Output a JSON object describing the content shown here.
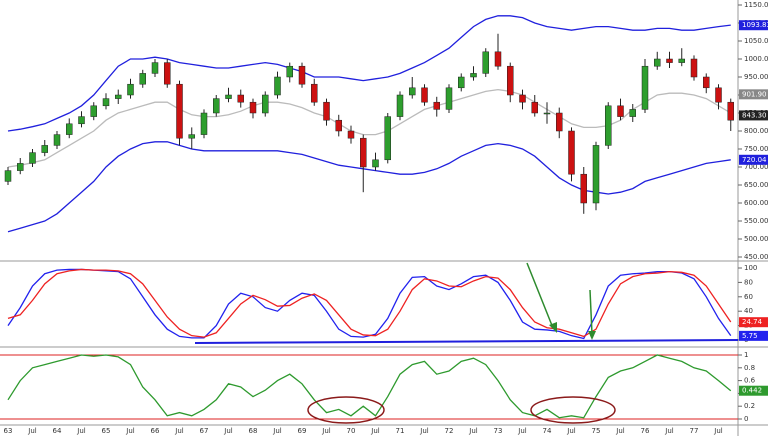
{
  "chart_data": [
    {
      "type": "candlestick",
      "open": [
        660,
        690,
        710,
        740,
        760,
        790,
        820,
        840,
        870,
        890,
        900,
        930,
        960,
        990,
        930,
        780,
        790,
        850,
        890,
        900,
        880,
        850,
        900,
        950,
        980,
        930,
        880,
        830,
        800,
        780,
        700,
        720,
        840,
        900,
        920,
        880,
        860,
        920,
        950,
        960,
        1020,
        980,
        900,
        880,
        850,
        850,
        800,
        680,
        600,
        760,
        870,
        840,
        860,
        980,
        1000,
        990,
        1000,
        950,
        920,
        880
      ],
      "high": [
        700,
        725,
        750,
        775,
        800,
        835,
        855,
        880,
        905,
        915,
        945,
        970,
        1000,
        1000,
        940,
        810,
        860,
        900,
        920,
        915,
        890,
        910,
        965,
        990,
        990,
        945,
        890,
        845,
        815,
        790,
        740,
        850,
        910,
        950,
        930,
        895,
        930,
        960,
        980,
        1030,
        1070,
        990,
        915,
        900,
        880,
        865,
        810,
        700,
        770,
        880,
        890,
        875,
        1000,
        1020,
        1020,
        1030,
        1010,
        960,
        930,
        890
      ],
      "low": [
        650,
        680,
        700,
        730,
        750,
        780,
        810,
        830,
        860,
        875,
        890,
        920,
        950,
        920,
        760,
        750,
        780,
        840,
        880,
        865,
        835,
        840,
        890,
        935,
        920,
        870,
        815,
        785,
        765,
        630,
        690,
        710,
        830,
        890,
        870,
        840,
        850,
        910,
        940,
        950,
        970,
        880,
        860,
        840,
        820,
        780,
        660,
        570,
        580,
        750,
        830,
        825,
        850,
        970,
        975,
        980,
        940,
        905,
        860,
        800
      ],
      "close": [
        690,
        710,
        740,
        760,
        790,
        820,
        840,
        870,
        890,
        900,
        930,
        960,
        990,
        930,
        780,
        790,
        850,
        890,
        900,
        880,
        850,
        900,
        950,
        980,
        930,
        880,
        830,
        800,
        780,
        700,
        720,
        840,
        900,
        920,
        880,
        860,
        920,
        950,
        960,
        1020,
        980,
        900,
        880,
        850,
        850,
        800,
        680,
        600,
        760,
        870,
        840,
        860,
        980,
        1000,
        990,
        1000,
        950,
        920,
        880,
        830
      ],
      "up_color": "#2e9e2e",
      "down_color": "#cc1111",
      "series": [
        {
          "color": "#2020dd",
          "values": [
            800,
            805,
            812,
            820,
            835,
            850,
            870,
            900,
            940,
            980,
            1000,
            1000,
            1005,
            1000,
            990,
            985,
            980,
            975,
            975,
            980,
            985,
            990,
            985,
            975,
            965,
            950,
            950,
            950,
            945,
            940,
            945,
            950,
            960,
            975,
            990,
            1010,
            1030,
            1060,
            1090,
            1110,
            1120,
            1120,
            1115,
            1100,
            1090,
            1085,
            1080,
            1085,
            1090,
            1090,
            1085,
            1080,
            1080,
            1085,
            1085,
            1080,
            1080,
            1085,
            1090,
            1094
          ]
        },
        {
          "color": "#bbbbbb",
          "values": [
            700,
            705,
            712,
            720,
            740,
            760,
            780,
            800,
            830,
            850,
            860,
            870,
            880,
            880,
            860,
            845,
            840,
            840,
            845,
            855,
            870,
            880,
            880,
            875,
            865,
            850,
            840,
            820,
            800,
            790,
            790,
            800,
            820,
            840,
            860,
            870,
            880,
            890,
            900,
            910,
            915,
            910,
            900,
            880,
            860,
            840,
            820,
            810,
            810,
            815,
            830,
            860,
            880,
            900,
            905,
            905,
            900,
            890,
            870,
            850
          ]
        },
        {
          "color": "#2020dd",
          "values": [
            520,
            530,
            540,
            550,
            570,
            600,
            630,
            660,
            700,
            730,
            750,
            765,
            770,
            770,
            760,
            750,
            745,
            745,
            745,
            745,
            745,
            745,
            745,
            740,
            735,
            725,
            715,
            705,
            700,
            695,
            690,
            685,
            680,
            680,
            685,
            695,
            710,
            730,
            745,
            760,
            765,
            760,
            750,
            730,
            700,
            670,
            650,
            635,
            630,
            625,
            630,
            640,
            660,
            670,
            680,
            690,
            700,
            710,
            715,
            720
          ]
        }
      ],
      "ylim": [
        450,
        1150
      ],
      "yticks": [
        {
          "value": 1150,
          "label": "1150.00"
        },
        {
          "value": 1100,
          "label": "1100.00"
        },
        {
          "value": 1050,
          "label": "1050.00"
        },
        {
          "value": 1000,
          "label": "1000.00"
        },
        {
          "value": 950,
          "label": "950.00"
        },
        {
          "value": 900,
          "label": "900.00"
        },
        {
          "value": 850,
          "label": "850.00"
        },
        {
          "value": 800,
          "label": "800.00"
        },
        {
          "value": 750,
          "label": "750.00"
        },
        {
          "value": 700,
          "label": "700.00"
        },
        {
          "value": 650,
          "label": "650.00"
        },
        {
          "value": 600,
          "label": "600.00"
        },
        {
          "value": 550,
          "label": "550.00"
        },
        {
          "value": 500,
          "label": "500.00"
        },
        {
          "value": 450,
          "label": "450.00"
        }
      ],
      "markers": [
        {
          "value": 1093.83,
          "label": "1093.83",
          "color": "#2020dd"
        },
        {
          "value": 901.9,
          "label": "901.90",
          "color": "#888888"
        },
        {
          "value": 843.3,
          "label": "843.30",
          "color": "#222222"
        },
        {
          "value": 720.04,
          "label": "720.04",
          "color": "#2020dd"
        }
      ]
    },
    {
      "type": "line",
      "series": [
        {
          "color": "#2222ee",
          "values": [
            20,
            45,
            75,
            92,
            97,
            98,
            98,
            97,
            96,
            95,
            85,
            60,
            35,
            15,
            5,
            3,
            3,
            20,
            50,
            65,
            60,
            45,
            40,
            55,
            65,
            62,
            40,
            15,
            5,
            4,
            8,
            30,
            65,
            87,
            88,
            75,
            70,
            78,
            88,
            90,
            80,
            55,
            25,
            15,
            14,
            12,
            6,
            2,
            35,
            75,
            90,
            92,
            93,
            95,
            95,
            93,
            85,
            60,
            30,
            6
          ]
        },
        {
          "color": "#ee2222",
          "values": [
            30,
            35,
            55,
            78,
            92,
            96,
            98,
            97,
            97,
            96,
            92,
            78,
            55,
            32,
            15,
            6,
            4,
            10,
            30,
            50,
            62,
            56,
            47,
            48,
            58,
            64,
            55,
            35,
            15,
            7,
            6,
            15,
            40,
            70,
            85,
            82,
            75,
            74,
            82,
            88,
            86,
            70,
            45,
            25,
            17,
            15,
            10,
            5,
            15,
            50,
            78,
            88,
            92,
            93,
            95,
            94,
            90,
            75,
            50,
            25
          ]
        }
      ],
      "ylim": [
        0,
        100
      ],
      "yticks": [
        100,
        80,
        60,
        40,
        20,
        0
      ],
      "markers": [
        {
          "value": 24.74,
          "label": "24.74",
          "color": "#ee2222"
        },
        {
          "value": 5.75,
          "label": "5.75",
          "color": "#2222ee"
        }
      ]
    },
    {
      "type": "line",
      "series": [
        {
          "color": "#2e9a2e",
          "values": [
            0.3,
            0.6,
            0.8,
            0.85,
            0.9,
            0.95,
            1,
            0.98,
            1,
            0.97,
            0.85,
            0.5,
            0.3,
            0.05,
            0.1,
            0.05,
            0.15,
            0.3,
            0.55,
            0.5,
            0.35,
            0.45,
            0.6,
            0.7,
            0.55,
            0.3,
            0.1,
            0.15,
            0.05,
            0.2,
            0.05,
            0.35,
            0.7,
            0.85,
            0.9,
            0.7,
            0.75,
            0.9,
            0.95,
            0.85,
            0.6,
            0.3,
            0.1,
            0.05,
            0.15,
            0.02,
            0.05,
            0.02,
            0.35,
            0.65,
            0.75,
            0.8,
            0.9,
            1,
            0.95,
            0.9,
            0.8,
            0.75,
            0.6,
            0.442
          ]
        }
      ],
      "ylim": [
        0,
        1
      ],
      "yticks": [
        1,
        0.8,
        0.6,
        0.4,
        0.2,
        0
      ],
      "hlines": [
        1,
        0
      ],
      "hline_color": "#dd2222",
      "markers": [
        {
          "value": 0.442,
          "label": "0.442",
          "color": "#2e9a2e"
        }
      ],
      "categories": [
        "63",
        null,
        "Jul",
        null,
        "64",
        null,
        "Jul",
        null,
        "65",
        null,
        "Jul",
        null,
        "66",
        null,
        "Jul",
        null,
        "67",
        null,
        "Jul",
        null,
        "68",
        null,
        "Jul",
        null,
        "69",
        null,
        "Jul",
        null,
        "70",
        null,
        "Jul",
        null,
        "71",
        null,
        "Jul",
        null,
        "72",
        null,
        "Jul",
        null,
        "73",
        null,
        "Jul",
        null,
        "74",
        null,
        "Jul",
        null,
        "75",
        null,
        "Jul",
        null,
        "76",
        null,
        "Jul",
        null,
        "77",
        null,
        "Jul",
        null
      ]
    }
  ]
}
